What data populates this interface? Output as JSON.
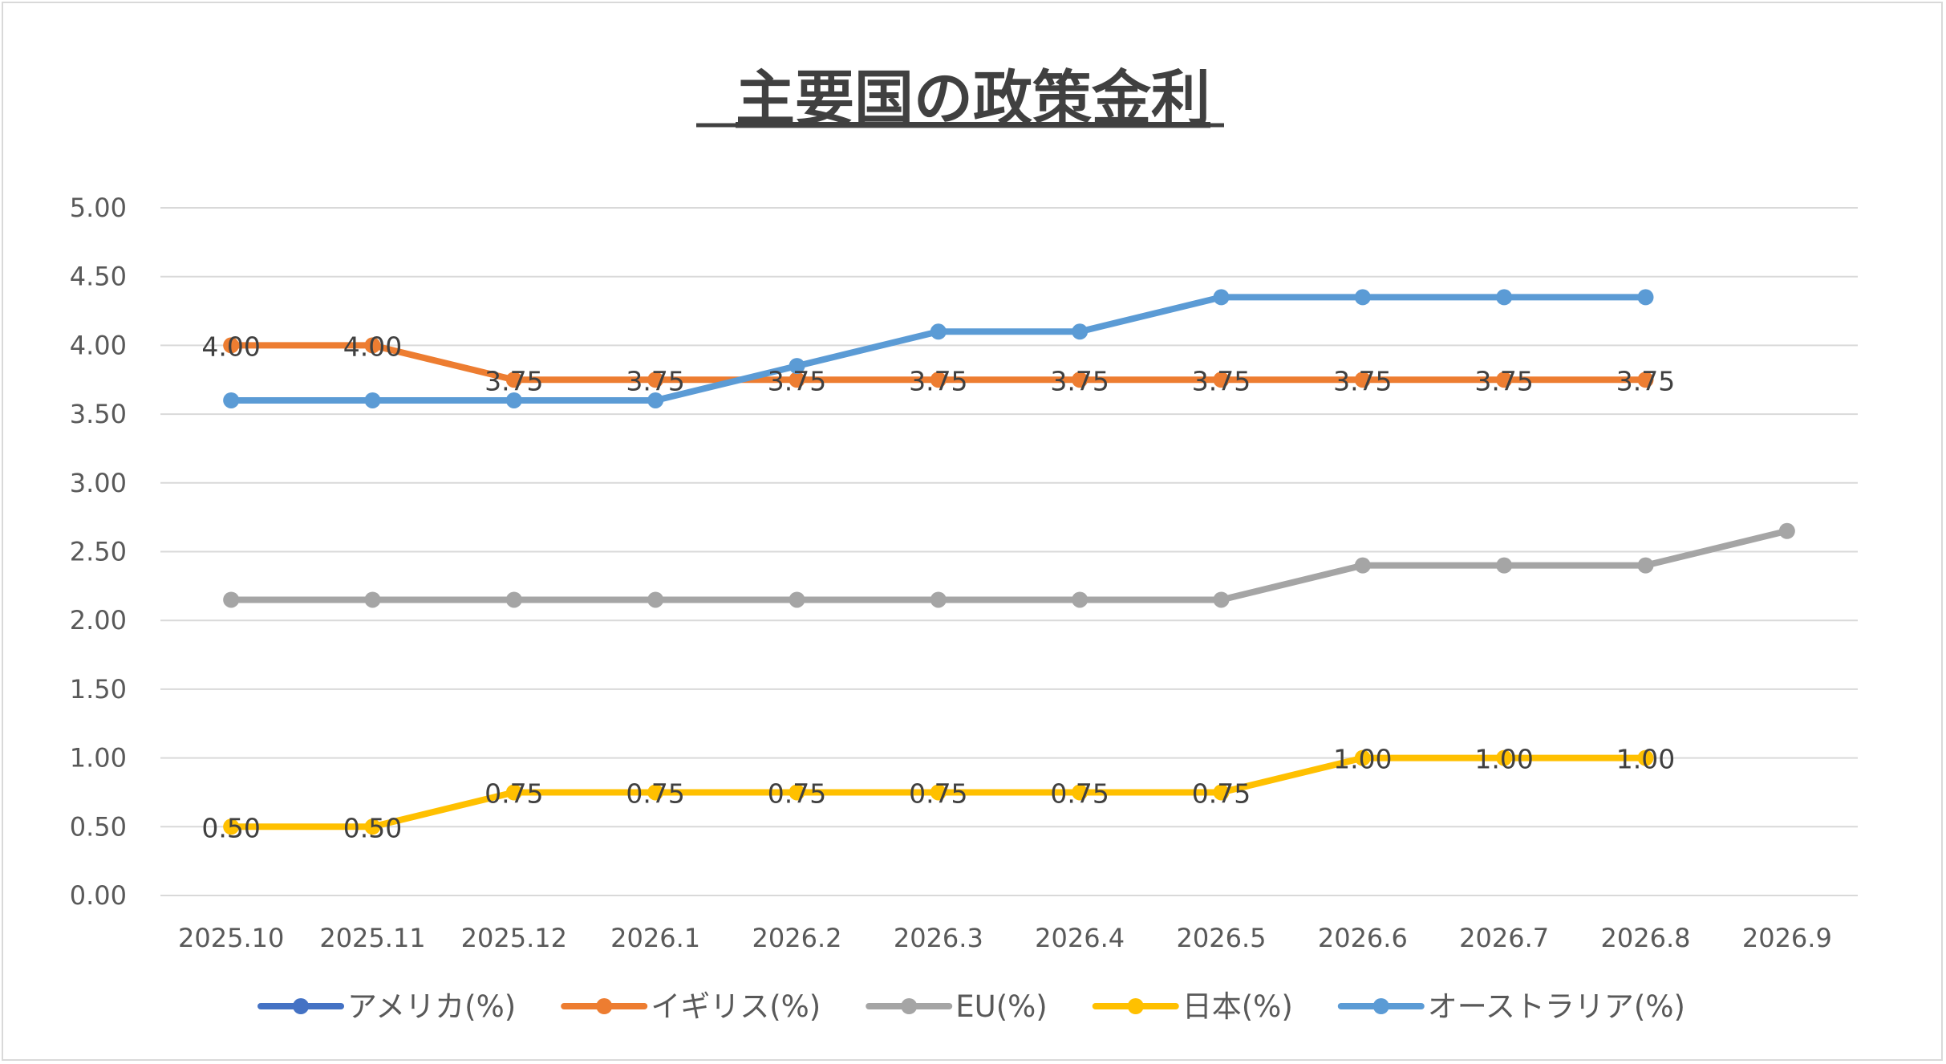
{
  "chart_data": {
    "type": "line",
    "title": "主要国の政策金利",
    "categories": [
      "2025.10",
      "2025.11",
      "2025.12",
      "2026.1",
      "2026.2",
      "2026.3",
      "2026.4",
      "2026.5",
      "2026.6",
      "2026.7",
      "2026.8",
      "2026.9"
    ],
    "ylim": [
      0,
      5
    ],
    "y_ticks": [
      "0.00",
      "0.50",
      "1.00",
      "1.50",
      "2.00",
      "2.50",
      "3.00",
      "3.50",
      "4.00",
      "4.50",
      "5.00"
    ],
    "grid": true,
    "legend_position": "bottom",
    "series": [
      {
        "name": "アメリカ(%)",
        "color": "#4472C4",
        "values": [
          null,
          null,
          null,
          null,
          null,
          null,
          null,
          null,
          null,
          null,
          null,
          null
        ],
        "show_labels": false
      },
      {
        "name": "イギリス(%)",
        "color": "#ED7D31",
        "values": [
          4.0,
          4.0,
          3.75,
          3.75,
          3.75,
          3.75,
          3.75,
          3.75,
          3.75,
          3.75,
          3.75,
          null
        ],
        "show_labels": true
      },
      {
        "name": "EU(%)",
        "color": "#A5A5A5",
        "values": [
          2.15,
          2.15,
          2.15,
          2.15,
          2.15,
          2.15,
          2.15,
          2.15,
          2.4,
          2.4,
          2.4,
          2.65
        ],
        "show_labels": false
      },
      {
        "name": "日本(%)",
        "color": "#FFC000",
        "values": [
          0.5,
          0.5,
          0.75,
          0.75,
          0.75,
          0.75,
          0.75,
          0.75,
          1.0,
          1.0,
          1.0,
          null
        ],
        "show_labels": true
      },
      {
        "name": "オーストラリア(%)",
        "color": "#5B9BD5",
        "values": [
          3.6,
          3.6,
          3.6,
          3.6,
          3.85,
          4.1,
          4.1,
          4.35,
          4.35,
          4.35,
          4.35,
          null
        ],
        "show_labels": false
      }
    ]
  }
}
